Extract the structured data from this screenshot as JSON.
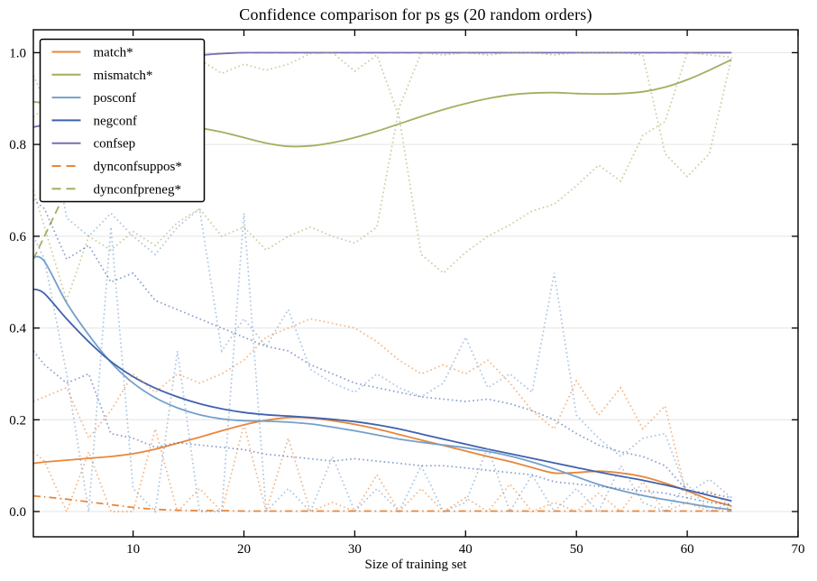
{
  "title": "Confidence comparison for ps gs (20 random orders)",
  "axes": {
    "xlabel": "Size of training set",
    "x_tick_labels": [
      "10",
      "20",
      "30",
      "40",
      "50",
      "60",
      "70"
    ],
    "x_tick_values": [
      10,
      20,
      30,
      40,
      50,
      60,
      70
    ],
    "y_tick_labels": [
      "0.0",
      "0.2",
      "0.4",
      "0.6",
      "0.8",
      "1.0"
    ],
    "y_tick_values": [
      0,
      0.2,
      0.4,
      0.6,
      0.8,
      1.0
    ],
    "xlim": [
      1,
      70
    ],
    "ylim": [
      -0.055,
      1.05
    ],
    "grid": "horizontal-only",
    "grid_color": "#e4e4e4",
    "spine_color": "#000000",
    "tick_direction": "in"
  },
  "legend": {
    "position": "upper-left",
    "items": [
      {
        "label": "match*",
        "series_key": "match"
      },
      {
        "label": "mismatch*",
        "series_key": "mismatch"
      },
      {
        "label": "posconf",
        "series_key": "posconf"
      },
      {
        "label": "negconf",
        "series_key": "negconf"
      },
      {
        "label": "confsep",
        "series_key": "confsep"
      },
      {
        "label": "dynconfsuppos*",
        "series_key": "dynconfsuppos"
      },
      {
        "label": "dynconfpreneg*",
        "series_key": "dynconfpreneg"
      }
    ]
  },
  "chart_data": {
    "type": "line",
    "x": [
      1,
      2,
      4,
      6,
      8,
      10,
      12,
      14,
      16,
      18,
      20,
      22,
      24,
      26,
      28,
      30,
      32,
      34,
      36,
      38,
      40,
      42,
      44,
      46,
      48,
      50,
      52,
      54,
      56,
      58,
      60,
      62,
      64
    ],
    "series": [
      {
        "key": "match",
        "label": "match*",
        "role": "mean",
        "style": "solid",
        "color": "#e8873b",
        "values": [
          0.105,
          0.108,
          0.112,
          0.116,
          0.12,
          0.126,
          0.136,
          0.149,
          0.162,
          0.176,
          0.189,
          0.199,
          0.205,
          0.204,
          0.198,
          0.19,
          0.18,
          0.168,
          0.156,
          0.144,
          0.132,
          0.12,
          0.109,
          0.096,
          0.084,
          0.085,
          0.088,
          0.084,
          0.076,
          0.062,
          0.045,
          0.026,
          0.012
        ]
      },
      {
        "key": "mismatch",
        "label": "mismatch*",
        "role": "mean",
        "style": "solid",
        "color": "#a6ad60",
        "values": [
          0.893,
          0.89,
          0.88,
          0.871,
          0.862,
          0.855,
          0.848,
          0.842,
          0.836,
          0.827,
          0.815,
          0.803,
          0.796,
          0.797,
          0.804,
          0.815,
          0.829,
          0.845,
          0.861,
          0.876,
          0.889,
          0.9,
          0.908,
          0.912,
          0.913,
          0.911,
          0.91,
          0.911,
          0.915,
          0.925,
          0.941,
          0.962,
          0.985
        ]
      },
      {
        "key": "posconf",
        "label": "posconf",
        "role": "mean",
        "style": "solid",
        "color": "#74a0cc",
        "values": [
          0.555,
          0.545,
          0.455,
          0.385,
          0.325,
          0.28,
          0.248,
          0.226,
          0.211,
          0.202,
          0.198,
          0.197,
          0.195,
          0.191,
          0.184,
          0.176,
          0.167,
          0.158,
          0.151,
          0.145,
          0.139,
          0.131,
          0.121,
          0.108,
          0.093,
          0.076,
          0.059,
          0.046,
          0.035,
          0.026,
          0.018,
          0.01,
          0.004
        ]
      },
      {
        "key": "negconf",
        "label": "negconf",
        "role": "mean",
        "style": "solid",
        "color": "#3f62ae",
        "values": [
          0.485,
          0.475,
          0.42,
          0.37,
          0.327,
          0.294,
          0.269,
          0.25,
          0.235,
          0.224,
          0.216,
          0.211,
          0.208,
          0.205,
          0.201,
          0.196,
          0.189,
          0.18,
          0.169,
          0.158,
          0.147,
          0.136,
          0.126,
          0.116,
          0.106,
          0.096,
          0.086,
          0.077,
          0.068,
          0.058,
          0.047,
          0.035,
          0.023
        ]
      },
      {
        "key": "confsep",
        "label": "confsep",
        "role": "mean",
        "style": "solid",
        "color": "#7e6db3",
        "values": [
          0.838,
          0.845,
          0.876,
          0.905,
          0.931,
          0.953,
          0.971,
          0.985,
          0.994,
          0.998,
          1.0,
          1.0,
          1.0,
          1.0,
          1.0,
          1.0,
          1.0,
          1.0,
          1.0,
          1.0,
          1.0,
          1.0,
          1.0,
          1.0,
          1.0,
          1.0,
          1.0,
          1.0,
          1.0,
          1.0,
          1.0,
          1.0,
          1.0
        ]
      },
      {
        "key": "dynconfsuppos",
        "label": "dynconfsuppos*",
        "role": "mean",
        "style": "dashdot",
        "color": "#e8873b",
        "values": [
          0.034,
          0.032,
          0.027,
          0.021,
          0.015,
          0.009,
          0.005,
          0.003,
          0.002,
          0.002,
          0.001,
          0.001,
          0.001,
          0.001,
          0.001,
          0.001,
          0.001,
          0.001,
          0.001,
          0.001,
          0.001,
          0.001,
          0.001,
          0.001,
          0.001,
          0.001,
          0.001,
          0.001,
          0.001,
          0.001,
          0.001,
          0.001,
          0.001
        ]
      },
      {
        "key": "dynconfpreneg",
        "label": "dynconfpreneg*",
        "role": "mean",
        "style": "dashed",
        "color": "#a6ad60",
        "values": [
          0.55,
          0.6,
          0.7,
          0.79,
          0.87,
          0.925,
          0.962,
          0.983,
          0.994,
          0.998,
          1.0,
          1.0,
          1.0,
          1.0,
          1.0,
          1.0,
          1.0,
          1.0,
          1.0,
          1.0,
          1.0,
          1.0,
          1.0,
          1.0,
          1.0,
          1.0,
          1.0,
          1.0,
          1.0,
          1.0,
          1.0,
          1.0,
          1.0
        ]
      },
      {
        "key": "match-upper",
        "label": "match* order bound (upper)",
        "role": "bound",
        "style": "dotted",
        "color": "#e8873b",
        "values": [
          0.24,
          0.25,
          0.27,
          0.16,
          0.22,
          0.3,
          0.26,
          0.3,
          0.28,
          0.3,
          0.33,
          0.38,
          0.4,
          0.42,
          0.41,
          0.4,
          0.37,
          0.33,
          0.3,
          0.32,
          0.3,
          0.33,
          0.28,
          0.22,
          0.18,
          0.285,
          0.21,
          0.27,
          0.18,
          0.23,
          0.03,
          0.045,
          0.01
        ]
      },
      {
        "key": "match-lower",
        "label": "match* order bound (lower)",
        "role": "bound",
        "style": "dotted",
        "color": "#e8873b",
        "values": [
          0.13,
          0.11,
          0.0,
          0.13,
          0.0,
          0.0,
          0.18,
          0.0,
          0.05,
          0.0,
          0.19,
          0.0,
          0.16,
          0.0,
          0.02,
          0.0,
          0.08,
          0.0,
          0.05,
          0.0,
          0.03,
          0.0,
          0.06,
          0.0,
          0.02,
          0.0,
          0.04,
          0.0,
          0.065,
          0.0,
          0.02,
          0.0,
          0.01
        ]
      },
      {
        "key": "mismatch-upper",
        "label": "mismatch* order bound (upper)",
        "role": "bound",
        "style": "dotted",
        "color": "#a6ad60",
        "values": [
          0.86,
          0.88,
          0.92,
          0.95,
          0.93,
          0.96,
          0.95,
          0.97,
          0.985,
          0.955,
          0.975,
          0.962,
          0.975,
          0.998,
          1.0,
          0.96,
          0.995,
          0.86,
          0.56,
          0.52,
          0.565,
          0.6,
          0.625,
          0.655,
          0.67,
          0.71,
          0.755,
          0.72,
          0.82,
          0.85,
          1.0,
          0.995,
          0.99
        ]
      },
      {
        "key": "mismatch-lower",
        "label": "mismatch* order bound (lower)",
        "role": "bound",
        "style": "dotted",
        "color": "#a6ad60",
        "values": [
          0.7,
          0.62,
          0.46,
          0.6,
          0.57,
          0.61,
          0.58,
          0.63,
          0.66,
          0.6,
          0.62,
          0.57,
          0.6,
          0.62,
          0.6,
          0.585,
          0.62,
          0.88,
          1.0,
          0.995,
          1.0,
          0.995,
          1.0,
          1.0,
          0.995,
          1.0,
          1.0,
          1.0,
          0.995,
          0.78,
          0.73,
          0.78,
          0.99
        ]
      },
      {
        "key": "posconf-upper",
        "label": "posconf order bound (upper)",
        "role": "bound",
        "style": "dotted",
        "color": "#74a0cc",
        "values": [
          0.95,
          0.9,
          0.64,
          0.6,
          0.65,
          0.6,
          0.56,
          0.62,
          0.66,
          0.35,
          0.42,
          0.36,
          0.44,
          0.31,
          0.28,
          0.26,
          0.3,
          0.27,
          0.25,
          0.28,
          0.38,
          0.27,
          0.3,
          0.26,
          0.52,
          0.21,
          0.16,
          0.12,
          0.16,
          0.17,
          0.04,
          0.07,
          0.03
        ]
      },
      {
        "key": "posconf-lower",
        "label": "posconf order bound (lower)",
        "role": "bound",
        "style": "dotted",
        "color": "#74a0cc",
        "values": [
          0.6,
          0.55,
          0.3,
          0.0,
          0.62,
          0.05,
          0.0,
          0.35,
          0.0,
          0.0,
          0.65,
          0.0,
          0.05,
          0.0,
          0.12,
          0.0,
          0.05,
          0.0,
          0.1,
          0.0,
          0.02,
          0.14,
          0.0,
          0.08,
          0.0,
          0.05,
          0.0,
          0.1,
          0.02,
          0.0,
          0.06,
          0.0,
          0.02
        ]
      },
      {
        "key": "negconf-upper",
        "label": "negconf order bound (upper)",
        "role": "bound",
        "style": "dotted",
        "color": "#3f62ae",
        "values": [
          0.68,
          0.66,
          0.55,
          0.58,
          0.5,
          0.52,
          0.46,
          0.44,
          0.42,
          0.4,
          0.38,
          0.36,
          0.35,
          0.32,
          0.3,
          0.28,
          0.27,
          0.26,
          0.25,
          0.245,
          0.24,
          0.245,
          0.235,
          0.22,
          0.2,
          0.17,
          0.145,
          0.13,
          0.12,
          0.1,
          0.045,
          0.04,
          0.03
        ]
      },
      {
        "key": "negconf-lower",
        "label": "negconf order bound (lower)",
        "role": "bound",
        "style": "dotted",
        "color": "#3f62ae",
        "values": [
          0.35,
          0.32,
          0.28,
          0.3,
          0.17,
          0.16,
          0.14,
          0.15,
          0.145,
          0.14,
          0.135,
          0.125,
          0.12,
          0.115,
          0.11,
          0.115,
          0.11,
          0.105,
          0.1,
          0.1,
          0.095,
          0.09,
          0.085,
          0.08,
          0.065,
          0.06,
          0.055,
          0.05,
          0.045,
          0.04,
          0.03,
          0.02,
          0.015
        ]
      }
    ]
  }
}
